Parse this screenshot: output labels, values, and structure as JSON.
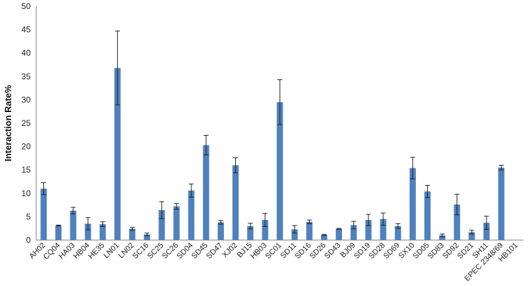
{
  "chart_data": {
    "type": "bar",
    "title": "",
    "xlabel": "",
    "ylabel": "Interaction Rate%",
    "ylim": [
      0,
      50
    ],
    "yticks": [
      0,
      5,
      10,
      15,
      20,
      25,
      30,
      35,
      40,
      45,
      50
    ],
    "grid": false,
    "legend": "none",
    "bar_color": "#4f81bd",
    "error_bar_color": "#222222",
    "categories": [
      "AH02",
      "CQ04",
      "HA03",
      "HB04",
      "HE35",
      "LN01",
      "LN02",
      "SC16",
      "SC25",
      "SC26",
      "SD04",
      "SD45",
      "SD47",
      "XJ02",
      "BJ15",
      "HB03",
      "SC01",
      "SD11",
      "SD16",
      "SD26",
      "SD43",
      "BJ09",
      "SD19",
      "SD28",
      "SD69",
      "SX10",
      "SD05",
      "SD83",
      "SD92",
      "SD21",
      "SH11",
      "EPEC 2348/69",
      "HB101"
    ],
    "values": [
      11.0,
      3.1,
      6.3,
      3.5,
      3.4,
      36.8,
      2.4,
      1.2,
      6.4,
      7.2,
      10.6,
      20.3,
      3.8,
      16.0,
      3.0,
      4.3,
      29.5,
      2.3,
      3.9,
      1.1,
      2.4,
      3.2,
      4.3,
      4.5,
      3.0,
      15.4,
      10.4,
      1.0,
      7.6,
      1.7,
      3.7,
      15.5,
      0
    ],
    "errors": [
      1.3,
      0.1,
      0.7,
      1.3,
      0.5,
      7.9,
      0.3,
      0.3,
      1.8,
      0.6,
      1.4,
      2.1,
      0.4,
      1.6,
      0.6,
      1.4,
      4.8,
      0.8,
      0.4,
      0.1,
      0.1,
      0.8,
      1.2,
      1.3,
      0.5,
      2.3,
      1.3,
      0.3,
      2.2,
      0.4,
      1.4,
      0.5,
      0
    ]
  }
}
